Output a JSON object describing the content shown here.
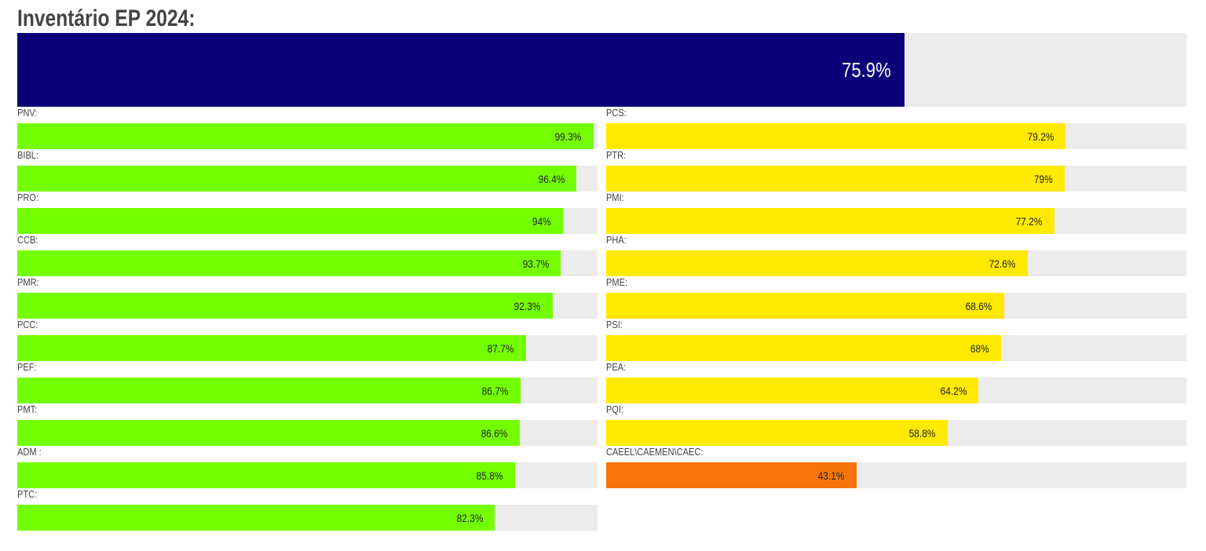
{
  "title": "Inventário EP 2024:",
  "colors": {
    "overall": "#0c0178",
    "high": "#74ff00",
    "mid": "#ffea00",
    "low": "#f6760b",
    "track": "#ececec"
  },
  "overall": {
    "value": 75.9,
    "label": "75.9%"
  },
  "left": [
    {
      "name": "PNV:",
      "value": 99.3,
      "label": "99.3%",
      "level": "high"
    },
    {
      "name": "BIBL:",
      "value": 96.4,
      "label": "96.4%",
      "level": "high"
    },
    {
      "name": "PRO:",
      "value": 94,
      "label": "94%",
      "level": "high"
    },
    {
      "name": "CCB:",
      "value": 93.7,
      "label": "93.7%",
      "level": "high"
    },
    {
      "name": "PMR:",
      "value": 92.3,
      "label": "92.3%",
      "level": "high"
    },
    {
      "name": "PCC:",
      "value": 87.7,
      "label": "87.7%",
      "level": "high"
    },
    {
      "name": "PEF:",
      "value": 86.7,
      "label": "86.7%",
      "level": "high"
    },
    {
      "name": "PMT:",
      "value": 86.6,
      "label": "86.6%",
      "level": "high"
    },
    {
      "name": "ADM :",
      "value": 85.8,
      "label": "85.8%",
      "level": "high"
    },
    {
      "name": "PTC:",
      "value": 82.3,
      "label": "82.3%",
      "level": "high"
    }
  ],
  "right": [
    {
      "name": "PCS:",
      "value": 79.2,
      "label": "79.2%",
      "level": "mid"
    },
    {
      "name": "PTR:",
      "value": 79,
      "label": "79%",
      "level": "mid"
    },
    {
      "name": "PMI:",
      "value": 77.2,
      "label": "77.2%",
      "level": "mid"
    },
    {
      "name": "PHA:",
      "value": 72.6,
      "label": "72.6%",
      "level": "mid"
    },
    {
      "name": "PME:",
      "value": 68.6,
      "label": "68.6%",
      "level": "mid"
    },
    {
      "name": "PSI:",
      "value": 68,
      "label": "68%",
      "level": "mid"
    },
    {
      "name": "PEA:",
      "value": 64.2,
      "label": "64.2%",
      "level": "mid"
    },
    {
      "name": "PQI:",
      "value": 58.8,
      "label": "58.8%",
      "level": "mid"
    },
    {
      "name": "CAEEL\\CAEMEN\\CAEC:",
      "value": 43.1,
      "label": "43.1%",
      "level": "low"
    }
  ]
}
